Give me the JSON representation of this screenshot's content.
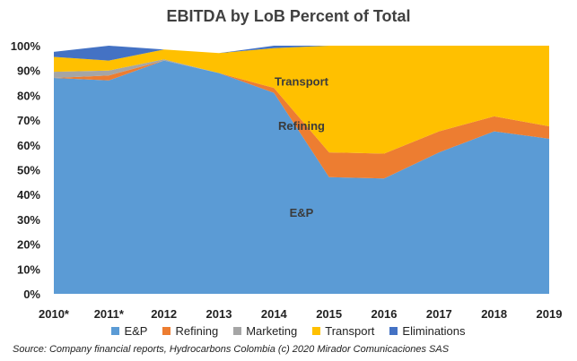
{
  "chart_data": {
    "type": "area",
    "stacked": true,
    "title": "EBITDA by LoB Percent of Total",
    "categories": [
      "2010*",
      "2011*",
      "2012",
      "2013",
      "2014",
      "2015",
      "2016",
      "2017",
      "2018",
      "2019"
    ],
    "y_ticks": [
      "0%",
      "10%",
      "20%",
      "30%",
      "40%",
      "50%",
      "60%",
      "70%",
      "80%",
      "90%",
      "100%"
    ],
    "ylim": [
      0,
      100
    ],
    "series": [
      {
        "name": "E&P",
        "color": "#5b9bd5",
        "values": [
          87,
          86,
          94,
          89,
          81,
          47,
          46.5,
          57,
          65.5,
          62.5
        ]
      },
      {
        "name": "Refining",
        "color": "#ed7d31",
        "values": [
          0,
          2,
          0,
          0,
          2,
          10,
          10,
          8.5,
          6,
          5
        ]
      },
      {
        "name": "Marketing",
        "color": "#a5a5a5",
        "values": [
          2.5,
          2,
          0.5,
          0,
          0,
          0,
          0,
          0,
          0,
          0
        ]
      },
      {
        "name": "Transport",
        "color": "#ffc000",
        "values": [
          6,
          4,
          4,
          8,
          16,
          43,
          43.5,
          34.5,
          28.5,
          32.5
        ]
      },
      {
        "name": "Eliminations",
        "color": "#4472c4",
        "values": [
          2,
          6,
          0,
          0,
          1,
          0,
          0,
          0,
          0,
          0
        ]
      }
    ],
    "annotations": [
      {
        "text": "Transport",
        "category_index": 4.5,
        "y": 84
      },
      {
        "text": "Refining",
        "category_index": 4.5,
        "y": 66
      },
      {
        "text": "E&P",
        "category_index": 4.5,
        "y": 31
      }
    ],
    "legend_position": "bottom",
    "grid": false,
    "source": "Source:  Company financial reports,  Hydrocarbons Colombia (c) 2020 Mirador Comunicaciones SAS"
  }
}
